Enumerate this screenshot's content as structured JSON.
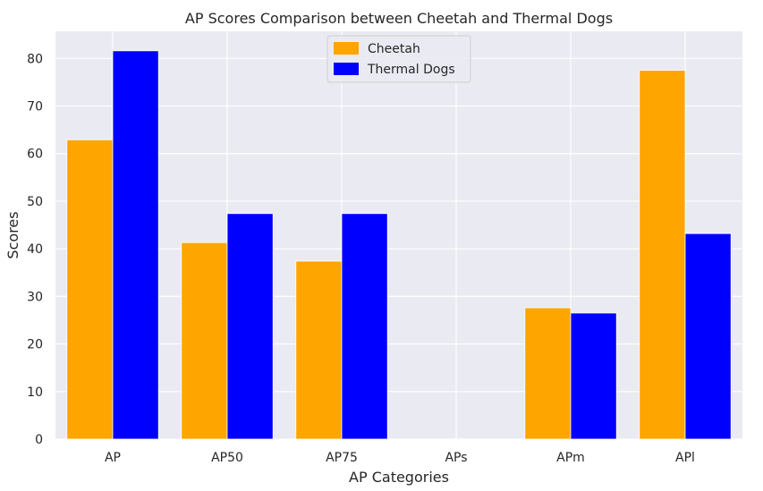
{
  "chart_data": {
    "type": "bar",
    "title": "AP Scores Comparison between Cheetah and Thermal Dogs",
    "xlabel": "AP Categories",
    "ylabel": "Scores",
    "categories": [
      "AP",
      "AP50",
      "AP75",
      "APs",
      "APm",
      "APl"
    ],
    "series": [
      {
        "name": "Cheetah",
        "color": "#FFA500",
        "values": [
          62.9,
          41.3,
          37.4,
          0,
          27.6,
          77.5
        ]
      },
      {
        "name": "Thermal Dogs",
        "color": "#0000FF",
        "values": [
          81.6,
          47.4,
          47.4,
          0,
          26.5,
          43.2
        ]
      }
    ],
    "ylim": [
      0,
      85.7
    ],
    "yticks": [
      0,
      10,
      20,
      30,
      40,
      50,
      60,
      70,
      80
    ],
    "grid": true,
    "legend_position": "upper-center",
    "background": "#EAEAF2"
  }
}
